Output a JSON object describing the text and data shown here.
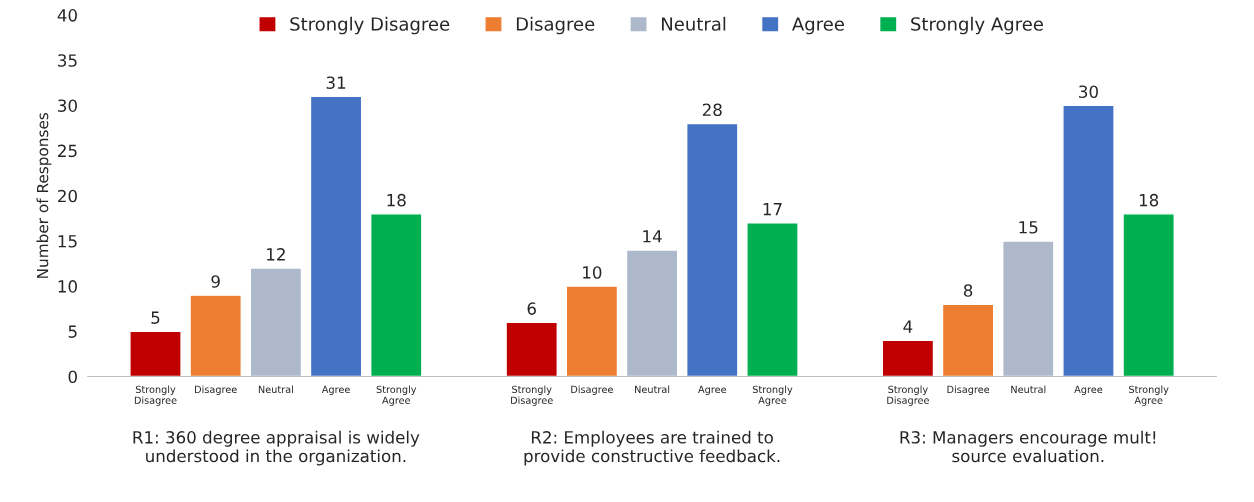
{
  "chart_data": {
    "type": "bar",
    "ylabel": "Number of Responses",
    "categories": [
      "R1: 360 degree appraisal is widely\nunderstood in the organization.",
      "R2: Employees are trained to\nprovide constructive feedback.",
      "R3: Managers encourage mult!\nsource evaluation."
    ],
    "series": [
      {
        "name": "Strongly Disagree",
        "color": "#c00000",
        "values": [
          5,
          6,
          4
        ]
      },
      {
        "name": "Disagree",
        "color": "#ed7d31",
        "values": [
          9,
          10,
          8
        ]
      },
      {
        "name": "Neutral",
        "color": "#adb9ca",
        "values": [
          12,
          14,
          15
        ]
      },
      {
        "name": "Agree",
        "color": "#4472c4",
        "values": [
          31,
          28,
          30
        ]
      },
      {
        "name": "Strongly Agree",
        "color": "#00b050",
        "values": [
          18,
          17,
          18
        ]
      }
    ],
    "ylim": [
      0,
      40
    ],
    "yticks": [
      0,
      5,
      10,
      15,
      20,
      25,
      30,
      35,
      40
    ],
    "data_labels": true,
    "legend": "top",
    "grid": false
  }
}
